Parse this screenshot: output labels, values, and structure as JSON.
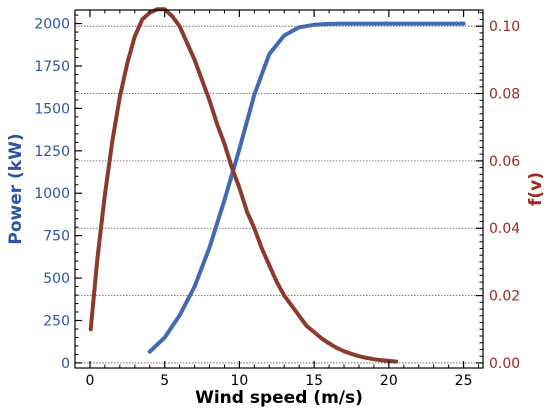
{
  "chart_data": {
    "type": "line",
    "xlabel": "Wind speed (m/s)",
    "ylabel_left": "Power (kW)",
    "ylabel_right": "f(v)",
    "xlim": [
      -1,
      26.3
    ],
    "ylim_left": [
      -30,
      2080
    ],
    "ylim_right": [
      -0.0015,
      0.1048
    ],
    "xticks": [
      0,
      5,
      10,
      15,
      20,
      25
    ],
    "xtick_labels": [
      "0",
      "5",
      "10",
      "15",
      "20",
      "25"
    ],
    "yticks_left": [
      0,
      250,
      500,
      750,
      1000,
      1250,
      1500,
      1750,
      2000
    ],
    "ytick_labels_left": [
      "0",
      "250",
      "500",
      "750",
      "1000",
      "1250",
      "1500",
      "1750",
      "2000"
    ],
    "yticks_right": [
      0,
      0.02,
      0.04,
      0.06,
      0.08,
      0.1
    ],
    "ytick_labels_right": [
      "0.00",
      "0.02",
      "0.04",
      "0.06",
      "0.08",
      "0.10"
    ],
    "grid": "horizontal dotted at right-axis ticks",
    "colors": {
      "power": "#4169B4",
      "fv": "#8B3A2B",
      "left_axis_text": "#2E55A5",
      "right_axis_text": "#A0281E"
    },
    "series": [
      {
        "name": "Power (kW)",
        "axis": "left",
        "x": [
          4,
          5,
          6,
          7,
          8,
          9,
          10,
          11,
          12,
          13,
          14,
          15,
          16,
          17,
          18,
          19,
          20,
          21,
          22,
          23,
          24,
          25
        ],
        "y": [
          66,
          150,
          280,
          450,
          680,
          960,
          1260,
          1580,
          1820,
          1930,
          1978,
          1993,
          1998,
          2000,
          2000,
          2000,
          2000,
          2000,
          2000,
          2000,
          2000,
          2000
        ]
      },
      {
        "name": "f(v)",
        "axis": "right",
        "x": [
          0.05,
          0.5,
          1,
          1.5,
          2,
          2.5,
          3,
          3.5,
          4,
          4.5,
          5,
          5.5,
          6,
          6.5,
          7,
          7.5,
          8,
          8.5,
          9,
          9.5,
          10,
          10.5,
          11,
          11.5,
          12,
          12.5,
          13,
          13.5,
          14,
          14.5,
          15,
          15.5,
          16,
          16.5,
          17,
          17.5,
          18,
          18.5,
          19,
          19.5,
          20,
          20.5
        ],
        "y": [
          0.01,
          0.031,
          0.05,
          0.066,
          0.079,
          0.089,
          0.097,
          0.102,
          0.104,
          0.105,
          0.105,
          0.103,
          0.1,
          0.095,
          0.09,
          0.084,
          0.078,
          0.071,
          0.065,
          0.058,
          0.052,
          0.045,
          0.04,
          0.034,
          0.029,
          0.024,
          0.02,
          0.017,
          0.014,
          0.011,
          0.0092,
          0.0073,
          0.0058,
          0.0045,
          0.0035,
          0.0027,
          0.002,
          0.0015,
          0.0011,
          0.0008,
          0.0006,
          0.0004
        ]
      }
    ]
  }
}
